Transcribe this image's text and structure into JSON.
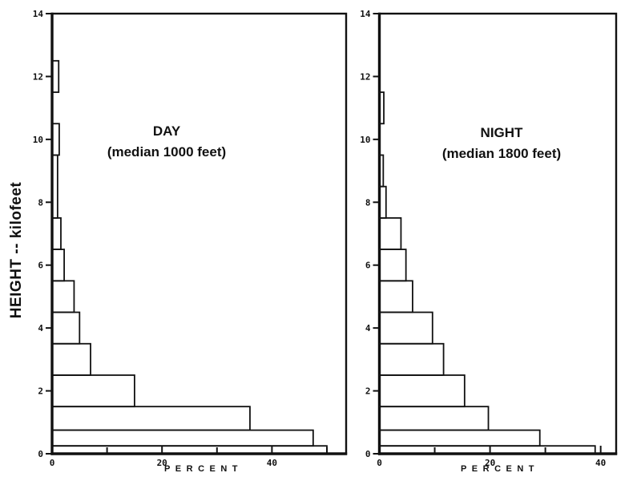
{
  "figure": {
    "ylabel": "HEIGHT -- kilofeet",
    "background_color": "#ffffff",
    "ink_color": "#111111"
  },
  "chart_data": [
    {
      "id": "day",
      "type": "bar",
      "orientation": "horizontal",
      "title": "DAY",
      "subtitle": "(median 1000 feet)",
      "xlabel": "PERCENT",
      "ylabel": "HEIGHT -- kilofeet",
      "xlim": [
        0,
        53.5
      ],
      "ylim": [
        0,
        14
      ],
      "x_ticks_labeled": [
        0,
        20,
        40
      ],
      "x_ticks_minor": [
        10,
        30,
        50
      ],
      "y_ticks_labeled": [
        0,
        2,
        4,
        6,
        8,
        10,
        12,
        14
      ],
      "grid": false,
      "bins_kilofeet": [
        {
          "from": 0,
          "to": 0.25,
          "percent": 50
        },
        {
          "from": 0.25,
          "to": 0.75,
          "percent": 47.5
        },
        {
          "from": 0.75,
          "to": 1.5,
          "percent": 36
        },
        {
          "from": 1.5,
          "to": 2.5,
          "percent": 15
        },
        {
          "from": 2.5,
          "to": 3.5,
          "percent": 7
        },
        {
          "from": 3.5,
          "to": 4.5,
          "percent": 5
        },
        {
          "from": 4.5,
          "to": 5.5,
          "percent": 4
        },
        {
          "from": 5.5,
          "to": 6.5,
          "percent": 2.2
        },
        {
          "from": 6.5,
          "to": 7.5,
          "percent": 1.6
        },
        {
          "from": 7.5,
          "to": 9.5,
          "percent": 1.0
        },
        {
          "from": 9.5,
          "to": 10.5,
          "percent": 1.3
        },
        {
          "from": 10.5,
          "to": 11.5,
          "percent": 0
        },
        {
          "from": 11.5,
          "to": 12.5,
          "percent": 1.2
        }
      ]
    },
    {
      "id": "night",
      "type": "bar",
      "orientation": "horizontal",
      "title": "NIGHT",
      "subtitle": "(median 1800 feet)",
      "xlabel": "PERCENT",
      "ylabel": "",
      "xlim": [
        0,
        42.8
      ],
      "ylim": [
        0,
        14
      ],
      "x_ticks_labeled": [
        0,
        20,
        40
      ],
      "x_ticks_minor": [
        10,
        30
      ],
      "y_ticks_labeled": [
        0,
        2,
        4,
        6,
        8,
        10,
        12,
        14
      ],
      "grid": false,
      "bins_kilofeet": [
        {
          "from": 0,
          "to": 0.25,
          "percent": 39
        },
        {
          "from": 0.25,
          "to": 0.75,
          "percent": 29
        },
        {
          "from": 0.75,
          "to": 1.5,
          "percent": 19.7
        },
        {
          "from": 1.5,
          "to": 2.5,
          "percent": 15.4
        },
        {
          "from": 2.5,
          "to": 3.5,
          "percent": 11.6
        },
        {
          "from": 3.5,
          "to": 4.5,
          "percent": 9.6
        },
        {
          "from": 4.5,
          "to": 5.5,
          "percent": 6.0
        },
        {
          "from": 5.5,
          "to": 6.5,
          "percent": 4.8
        },
        {
          "from": 6.5,
          "to": 7.5,
          "percent": 3.9
        },
        {
          "from": 7.5,
          "to": 8.5,
          "percent": 1.2
        },
        {
          "from": 8.5,
          "to": 9.5,
          "percent": 0.7
        },
        {
          "from": 9.5,
          "to": 10.5,
          "percent": 0
        },
        {
          "from": 10.5,
          "to": 11.5,
          "percent": 0.8
        }
      ]
    }
  ]
}
